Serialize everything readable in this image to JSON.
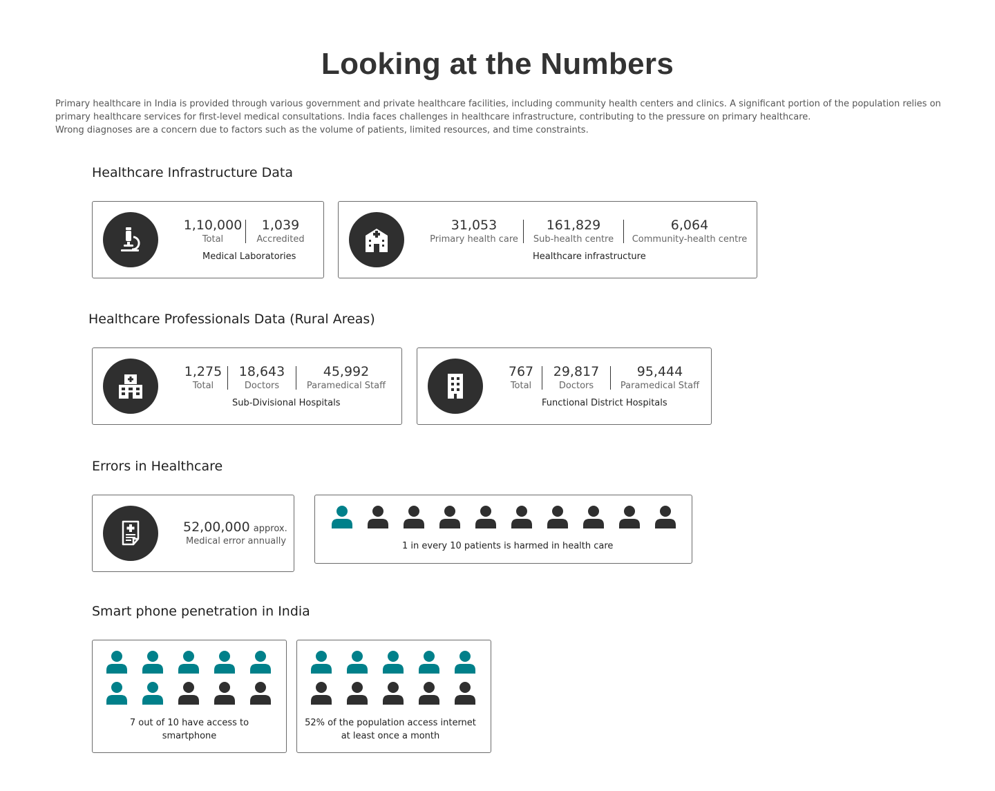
{
  "header": {
    "title": "Looking at the Numbers",
    "intro": [
      "Primary healthcare in India is provided through various government and private healthcare facilities, including community health centers and clinics. A significant portion of the population relies on primary healthcare services for first-level medical consultations. India faces challenges in healthcare infrastructure, contributing to the pressure on primary healthcare.",
      "Wrong diagnoses are a concern due to factors such as the volume of patients, limited resources, and time constraints."
    ]
  },
  "infrastructure": {
    "title": "Healthcare Infrastructure Data",
    "labs": {
      "icon": "microscope-icon",
      "stats": [
        {
          "value": "1,10,000",
          "label": "Total"
        },
        {
          "value": "1,039",
          "label": "Accredited"
        }
      ],
      "caption": "Medical Laboratories"
    },
    "facilities": {
      "icon": "hospital-icon",
      "stats": [
        {
          "value": "31,053",
          "label": "Primary health care"
        },
        {
          "value": "161,829",
          "label": "Sub-health centre"
        },
        {
          "value": "6,064",
          "label": "Community-health centre"
        }
      ],
      "caption": "Healthcare infrastructure"
    }
  },
  "professionals": {
    "title": "Healthcare Professionals Data (Rural Areas)",
    "sub_divisional": {
      "icon": "clinic-building-icon",
      "stats": [
        {
          "value": "1,275",
          "label": "Total"
        },
        {
          "value": "18,643",
          "label": "Doctors"
        },
        {
          "value": "45,992",
          "label": "Paramedical Staff"
        }
      ],
      "caption": "Sub-Divisional Hospitals"
    },
    "district": {
      "icon": "office-building-icon",
      "stats": [
        {
          "value": "767",
          "label": "Total"
        },
        {
          "value": "29,817",
          "label": "Doctors"
        },
        {
          "value": "95,444",
          "label": "Paramedical Staff"
        }
      ],
      "caption": "Functional District Hospitals"
    }
  },
  "errors": {
    "title": "Errors in Healthcare",
    "medical_error": {
      "icon": "medical-report-icon",
      "value": "52,00,000",
      "suffix": "approx.",
      "label": "Medical error annually"
    },
    "harm": {
      "highlighted": 1,
      "total": 10,
      "caption": "1 in every 10 patients is harmed in health care"
    }
  },
  "smartphone": {
    "title": "Smart phone penetration in India",
    "access": {
      "highlighted": 7,
      "total": 10,
      "caption_line1": "7 out of 10 have access to",
      "caption_line2": "smartphone"
    },
    "internet": {
      "highlighted": 5,
      "total": 10,
      "caption_line1": "52% of the population access internet",
      "caption_line2": "at least once a month"
    }
  },
  "colors": {
    "highlight": "#00808a",
    "dark": "#2f2f2f"
  }
}
